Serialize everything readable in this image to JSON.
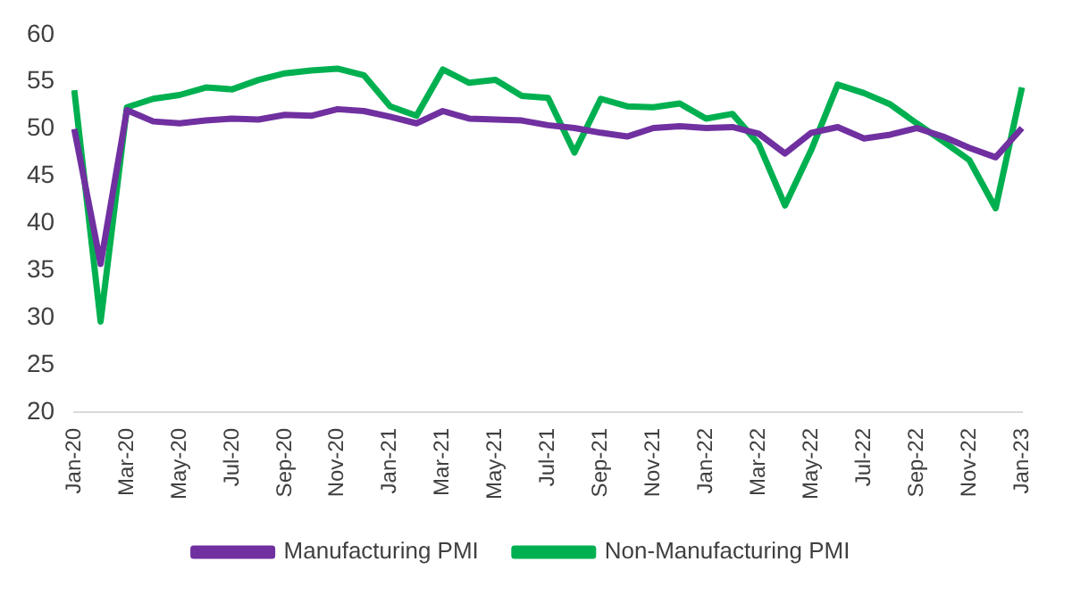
{
  "chart_data": {
    "type": "line",
    "categories": [
      "Jan-20",
      null,
      "Mar-20",
      null,
      "May-20",
      null,
      "Jul-20",
      null,
      "Sep-20",
      null,
      "Nov-20",
      null,
      "Jan-21",
      null,
      "Mar-21",
      null,
      "May-21",
      null,
      "Jul-21",
      null,
      "Sep-21",
      null,
      "Nov-21",
      null,
      "Jan-22",
      null,
      "Mar-22",
      null,
      "May-22",
      null,
      "Jul-22",
      null,
      "Sep-22",
      null,
      "Nov-22",
      null,
      "Jan-23"
    ],
    "series": [
      {
        "name": "Manufacturing PMI",
        "color": "#7030a0",
        "values": [
          50.0,
          35.7,
          52.0,
          50.8,
          50.6,
          50.9,
          51.1,
          51.0,
          51.5,
          51.4,
          52.1,
          51.9,
          51.3,
          50.6,
          51.9,
          51.1,
          51.0,
          50.9,
          50.4,
          50.1,
          49.6,
          49.2,
          50.1,
          50.3,
          50.1,
          50.2,
          49.5,
          47.4,
          49.6,
          50.2,
          49.0,
          49.4,
          50.1,
          49.2,
          48.0,
          47.0,
          50.1
        ]
      },
      {
        "name": "Non-Manufacturing PMI",
        "color": "#00b050",
        "values": [
          54.1,
          29.6,
          52.3,
          53.2,
          53.6,
          54.4,
          54.2,
          55.2,
          55.9,
          56.2,
          56.4,
          55.7,
          52.4,
          51.4,
          56.3,
          54.9,
          55.2,
          53.5,
          53.3,
          47.5,
          53.2,
          52.4,
          52.3,
          52.7,
          51.1,
          51.6,
          48.4,
          41.9,
          47.8,
          54.7,
          53.8,
          52.6,
          50.6,
          48.7,
          46.7,
          41.6,
          54.4
        ]
      }
    ],
    "ylim": [
      20,
      60
    ],
    "yticks": [
      20,
      25,
      30,
      35,
      40,
      45,
      50,
      55,
      60
    ],
    "grid": false,
    "legend": "bottom",
    "marker": "none",
    "line_style": "solid"
  }
}
